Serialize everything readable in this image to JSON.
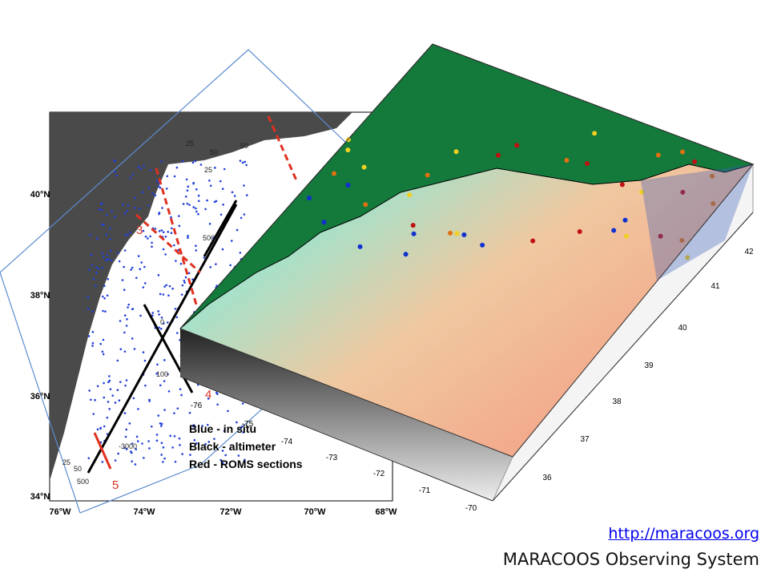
{
  "link": "http://maracoos.org",
  "caption": "MARACOOS Observing System",
  "map2d": {
    "lat_labels": [
      "40°N",
      "38°N",
      "36°N",
      "34°N"
    ],
    "lon_labels": [
      "76°W",
      "74°W",
      "72°W",
      "70°W",
      "68°W"
    ],
    "legend": [
      "Blue - in situ",
      "Black - altimeter",
      "Red - ROMS sections"
    ],
    "sections": [
      "3",
      "4",
      "5"
    ],
    "contour_labels": [
      "25",
      "50",
      "25",
      "50",
      "500",
      "0",
      "100",
      "-3000",
      "25",
      "50",
      "500"
    ]
  },
  "map3d": {
    "lat_labels": [
      "42",
      "41",
      "40",
      "39",
      "38",
      "37",
      "36"
    ],
    "lon_labels": [
      "-76",
      "-75",
      "-74",
      "-73",
      "-72",
      "-71",
      "-70"
    ]
  }
}
